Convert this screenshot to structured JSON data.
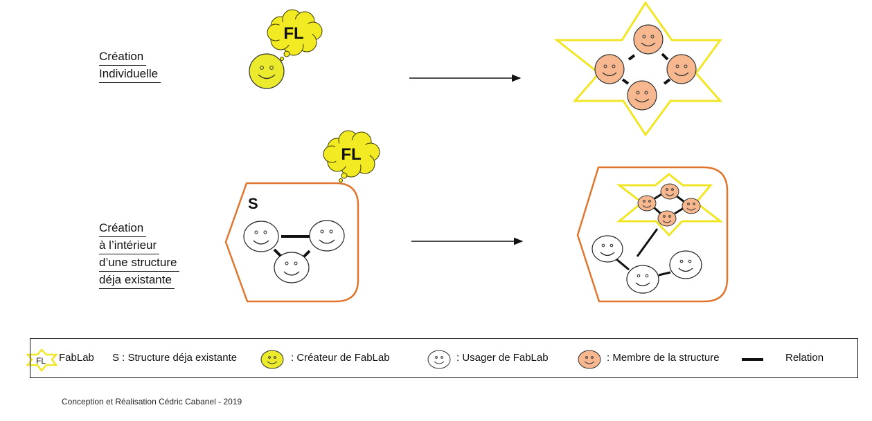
{
  "rows": [
    {
      "label_lines": [
        "Création",
        "Individuelle"
      ]
    },
    {
      "label_lines": [
        "Création",
        "à l’intérieur",
        "d’une structure",
        "déja existante"
      ]
    }
  ],
  "bubble_text": "FL",
  "structure_letter": "S",
  "legend": {
    "fablab_icon_text": "FL",
    "fablab": "FabLab",
    "structure": "S : Structure déja existante",
    "createur": ": Créateur de FabLab",
    "usager": ": Usager de FabLab",
    "membre": ": Membre de la structure",
    "relation": "Relation"
  },
  "credit": "Conception et Réalisation Cédric Cabanel - 2019",
  "colors": {
    "creator_face": "#ecea2c",
    "member_face": "#f7b88f",
    "user_face": "#ffffff",
    "fablab_star": "#f0e626",
    "structure_border": "#e0762e",
    "bubble": "#f2ea22"
  },
  "icons": [
    "smiley-creator-icon",
    "smiley-member-icon",
    "smiley-user-icon",
    "star-fablab-icon",
    "thought-bubble-icon",
    "arrow-icon"
  ]
}
